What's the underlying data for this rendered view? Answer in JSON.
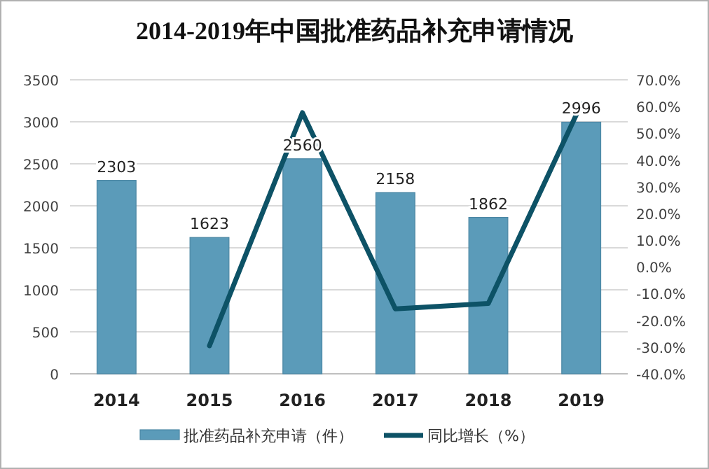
{
  "chart_data": {
    "type": "bar",
    "title": "2014-2019年中国批准药品补充申请情况",
    "categories": [
      "2014",
      "2015",
      "2016",
      "2017",
      "2018",
      "2019"
    ],
    "series": [
      {
        "name": "批准药品补充申请（件）",
        "color": "#5b9bb9",
        "values": [
          2303,
          1623,
          2560,
          2158,
          1862,
          2996
        ],
        "value_labels": [
          "2303",
          "1623",
          "2560",
          "2158",
          "1862",
          "2996"
        ]
      },
      {
        "name": "同比增长（%）",
        "type": "line",
        "axis": "y2",
        "color": "#0d5266",
        "values": [
          null,
          -29.5,
          57.7,
          -15.7,
          -13.7,
          60.9
        ]
      }
    ],
    "ylim": [
      0,
      3500
    ],
    "yticks": [
      0,
      500,
      1000,
      1500,
      2000,
      2500,
      3000,
      3500
    ],
    "y2lim": [
      -40,
      70
    ],
    "y2ticks": [
      {
        "value": -40,
        "label": "-40.0%"
      },
      {
        "value": -30,
        "label": "-30.0%"
      },
      {
        "value": -20,
        "label": "-20.0%"
      },
      {
        "value": -10,
        "label": "-10.0%"
      },
      {
        "value": 0,
        "label": "0.0%"
      },
      {
        "value": 10,
        "label": "10.0%"
      },
      {
        "value": 20,
        "label": "20.0%"
      },
      {
        "value": 30,
        "label": "30.0%"
      },
      {
        "value": 40,
        "label": "40.0%"
      },
      {
        "value": 50,
        "label": "50.0%"
      },
      {
        "value": 60,
        "label": "60.0%"
      },
      {
        "value": 70,
        "label": "70.0%"
      }
    ],
    "grid": "y",
    "legend": "bottom"
  }
}
